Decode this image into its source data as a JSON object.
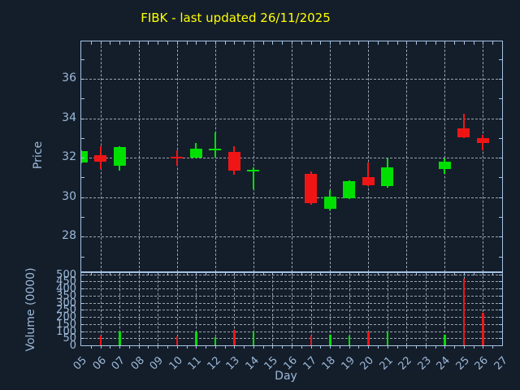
{
  "title": {
    "text": "FIBK - last updated 26/11/2025"
  },
  "axes": {
    "xlabel": "Day",
    "price_ylabel": "Price",
    "volume_ylabel": "Volume (0000)",
    "xtick_labels": [
      "05",
      "06",
      "07",
      "08",
      "09",
      "10",
      "11",
      "12",
      "13",
      "14",
      "15",
      "16",
      "17",
      "18",
      "19",
      "20",
      "21",
      "22",
      "23",
      "24",
      "25",
      "26",
      "27"
    ],
    "price_yticks": [
      28,
      30,
      32,
      34,
      36
    ],
    "volume_yticks": [
      0,
      50,
      100,
      150,
      200,
      250,
      300,
      350,
      400,
      450,
      500
    ]
  },
  "colors": {
    "background": "#141e2b",
    "axis": "#a6c3e2",
    "label": "#9db9d8",
    "grid": "#99a3ae",
    "title": "#ffff00",
    "up": "#00e000",
    "down": "#f01515"
  },
  "chart_data": {
    "type": "candlestick",
    "title": "FIBK - last updated 26/11/2025",
    "xlabel": "Day",
    "legend": "none",
    "grid": "dashed, vertical every 2 days on price panel, every day on volume panel",
    "xlim": [
      5,
      27
    ],
    "panels": [
      {
        "name": "price",
        "ylabel": "Price",
        "ylim": [
          26.2,
          37.9
        ],
        "yticks": [
          28,
          30,
          32,
          34,
          36
        ]
      },
      {
        "name": "volume",
        "ylabel": "Volume (0000)",
        "ylim": [
          0,
          515
        ],
        "yticks": [
          0,
          50,
          100,
          150,
          200,
          250,
          300,
          350,
          400,
          450,
          500
        ]
      }
    ],
    "days": [
      5,
      6,
      7,
      10,
      11,
      12,
      13,
      14,
      17,
      18,
      19,
      20,
      21,
      24,
      25,
      26
    ],
    "ohlc": [
      [
        31.75,
        32.4,
        31.7,
        32.35
      ],
      [
        32.15,
        32.6,
        31.45,
        31.8
      ],
      [
        31.6,
        32.6,
        31.35,
        32.55
      ],
      [
        32.05,
        32.4,
        31.6,
        32.0
      ],
      [
        32.0,
        32.75,
        31.95,
        32.45
      ],
      [
        32.4,
        33.3,
        32.0,
        32.45
      ],
      [
        32.3,
        32.6,
        31.15,
        31.35
      ],
      [
        31.35,
        31.5,
        30.4,
        31.4
      ],
      [
        31.2,
        31.3,
        29.6,
        29.7
      ],
      [
        29.4,
        30.35,
        29.35,
        30.05
      ],
      [
        29.95,
        30.85,
        29.9,
        30.8
      ],
      [
        31.0,
        31.75,
        30.55,
        30.6
      ],
      [
        30.55,
        31.95,
        30.5,
        31.5
      ],
      [
        31.45,
        31.95,
        31.2,
        31.8
      ],
      [
        33.5,
        34.25,
        33.0,
        33.05
      ],
      [
        33.0,
        33.15,
        32.4,
        32.75
      ]
    ],
    "volume": [
      null,
      70,
      100,
      65,
      95,
      60,
      110,
      95,
      70,
      75,
      70,
      100,
      95,
      75,
      470,
      230
    ]
  }
}
